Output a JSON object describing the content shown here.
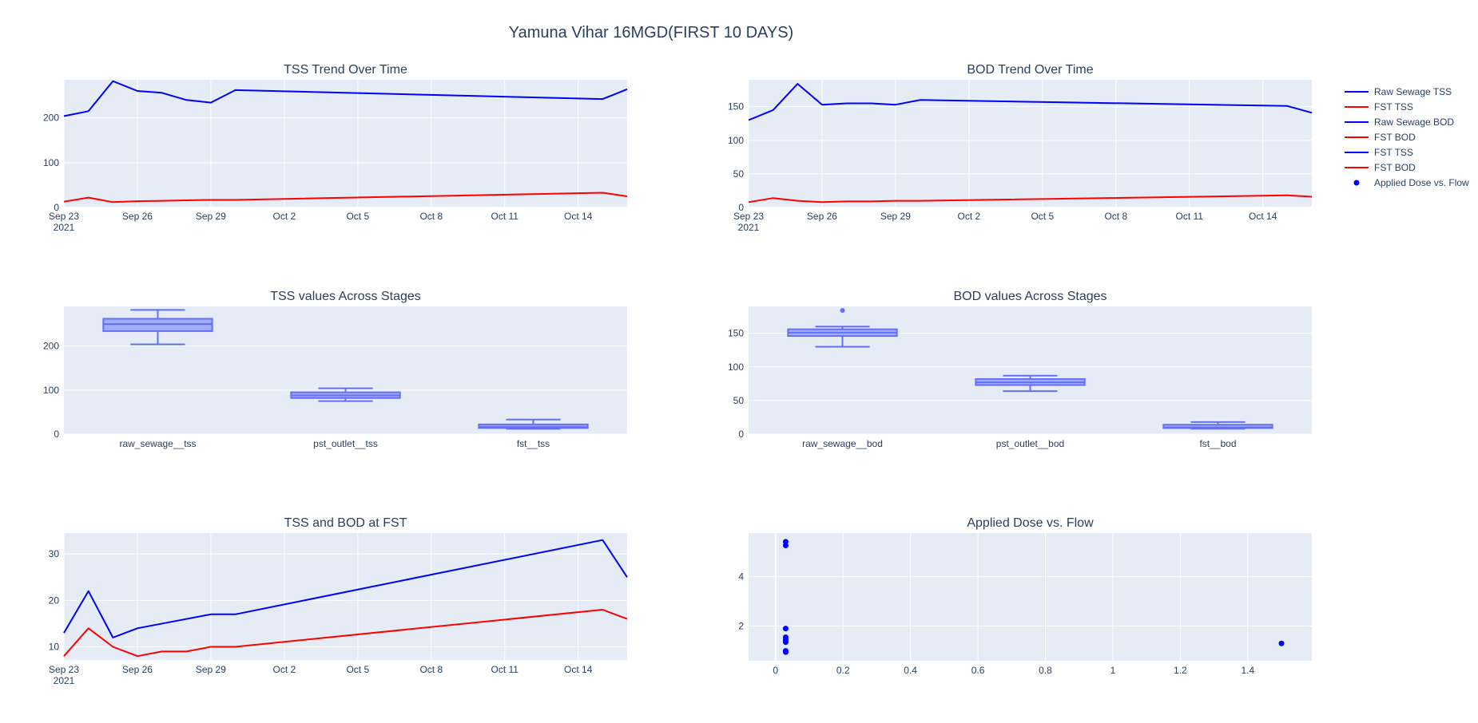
{
  "figure": {
    "title": "Yamuna Vihar 16MGD(FIRST 10 DAYS)",
    "colors": {
      "blue": "#0000ff",
      "red": "#ff0000",
      "box": "#636efa",
      "plot_bg": "#e5ecf6",
      "text": "#2a3f5f",
      "grid": "#ffffff"
    }
  },
  "legend": {
    "placement": "right",
    "items": [
      {
        "label": "Raw Sewage TSS",
        "color": "#0000ff",
        "kind": "line"
      },
      {
        "label": "FST TSS",
        "color": "#ff0000",
        "kind": "line"
      },
      {
        "label": "Raw Sewage BOD",
        "color": "#0000ff",
        "kind": "line"
      },
      {
        "label": "FST BOD",
        "color": "#ff0000",
        "kind": "line"
      },
      {
        "label": "FST TSS",
        "color": "#0000ff",
        "kind": "line"
      },
      {
        "label": "FST BOD",
        "color": "#ff0000",
        "kind": "line"
      },
      {
        "label": "Applied Dose vs. Flow",
        "color": "#0000ff",
        "kind": "marker"
      }
    ]
  },
  "chart_data": [
    {
      "type": "line",
      "title": "TSS Trend Over Time",
      "x_date_range": [
        "2021-09-23",
        "2021-10-16"
      ],
      "ylim": [
        0,
        285
      ],
      "yticks": [
        0,
        100,
        200
      ],
      "xtick_dates": [
        "2021-09-23",
        "2021-09-26",
        "2021-09-29",
        "2021-10-02",
        "2021-10-05",
        "2021-10-08",
        "2021-10-11",
        "2021-10-14"
      ],
      "xtick_labels": [
        "Sep 23",
        "Sep 26",
        "Sep 29",
        "Oct 2",
        "Oct 5",
        "Oct 8",
        "Oct 11",
        "Oct 14"
      ],
      "x_year_label": "2021",
      "grid": true,
      "series": [
        {
          "name": "Raw Sewage TSS",
          "color": "#0000ff",
          "x": [
            "2021-09-23",
            "2021-09-24",
            "2021-09-25",
            "2021-09-26",
            "2021-09-27",
            "2021-09-28",
            "2021-09-29",
            "2021-09-30",
            "2021-10-15",
            "2021-10-16"
          ],
          "y": [
            204,
            215,
            282,
            260,
            256,
            240,
            234,
            262,
            242,
            264
          ]
        },
        {
          "name": "FST TSS",
          "color": "#ff0000",
          "x": [
            "2021-09-23",
            "2021-09-24",
            "2021-09-25",
            "2021-09-26",
            "2021-09-27",
            "2021-09-28",
            "2021-09-29",
            "2021-09-30",
            "2021-10-15",
            "2021-10-16"
          ],
          "y": [
            13,
            22,
            12,
            14,
            15,
            16,
            17,
            17,
            33,
            25
          ]
        }
      ]
    },
    {
      "type": "line",
      "title": "BOD Trend Over Time",
      "x_date_range": [
        "2021-09-23",
        "2021-10-16"
      ],
      "ylim": [
        0,
        190
      ],
      "yticks": [
        0,
        50,
        100,
        150
      ],
      "xtick_dates": [
        "2021-09-23",
        "2021-09-26",
        "2021-09-29",
        "2021-10-02",
        "2021-10-05",
        "2021-10-08",
        "2021-10-11",
        "2021-10-14"
      ],
      "xtick_labels": [
        "Sep 23",
        "Sep 26",
        "Sep 29",
        "Oct 2",
        "Oct 5",
        "Oct 8",
        "Oct 11",
        "Oct 14"
      ],
      "x_year_label": "2021",
      "grid": true,
      "series": [
        {
          "name": "Raw Sewage BOD",
          "color": "#0000ff",
          "x": [
            "2021-09-23",
            "2021-09-24",
            "2021-09-25",
            "2021-09-26",
            "2021-09-27",
            "2021-09-28",
            "2021-09-29",
            "2021-09-30",
            "2021-10-15",
            "2021-10-16"
          ],
          "y": [
            130,
            145,
            184,
            153,
            155,
            155,
            153,
            160,
            151,
            141
          ]
        },
        {
          "name": "FST BOD",
          "color": "#ff0000",
          "x": [
            "2021-09-23",
            "2021-09-24",
            "2021-09-25",
            "2021-09-26",
            "2021-09-27",
            "2021-09-28",
            "2021-09-29",
            "2021-09-30",
            "2021-10-15",
            "2021-10-16"
          ],
          "y": [
            8,
            14,
            10,
            8,
            9,
            9,
            10,
            10,
            18,
            16
          ]
        }
      ]
    },
    {
      "type": "box",
      "title": "TSS values Across Stages",
      "ylim": [
        0,
        290
      ],
      "yticks": [
        0,
        100,
        200
      ],
      "grid": true,
      "boxes": [
        {
          "name": "raw_sewage__tss",
          "min": 204,
          "q1": 234,
          "median": 250,
          "q3": 262,
          "max": 282,
          "outliers": []
        },
        {
          "name": "pst_outlet__tss",
          "min": 75,
          "q1": 82,
          "median": 88,
          "q3": 95,
          "max": 104,
          "outliers": []
        },
        {
          "name": "fst__tss",
          "min": 12,
          "q1": 14,
          "median": 16,
          "q3": 22,
          "max": 33,
          "outliers": []
        }
      ]
    },
    {
      "type": "box",
      "title": "BOD values Across Stages",
      "ylim": [
        0,
        190
      ],
      "yticks": [
        0,
        50,
        100,
        150
      ],
      "grid": true,
      "boxes": [
        {
          "name": "raw_sewage__bod",
          "min": 130,
          "q1": 146,
          "median": 151,
          "q3": 156,
          "max": 160,
          "outliers": [
            184
          ]
        },
        {
          "name": "pst_outlet__bod",
          "min": 64,
          "q1": 73,
          "median": 77,
          "q3": 82,
          "max": 87,
          "outliers": []
        },
        {
          "name": "fst__bod",
          "min": 8,
          "q1": 9,
          "median": 10,
          "q3": 14,
          "max": 18,
          "outliers": []
        }
      ]
    },
    {
      "type": "line",
      "title": "TSS and BOD at FST",
      "x_date_range": [
        "2021-09-23",
        "2021-10-16"
      ],
      "ylim": [
        7,
        34.5
      ],
      "yticks": [
        10,
        20,
        30
      ],
      "xtick_dates": [
        "2021-09-23",
        "2021-09-26",
        "2021-09-29",
        "2021-10-02",
        "2021-10-05",
        "2021-10-08",
        "2021-10-11",
        "2021-10-14"
      ],
      "xtick_labels": [
        "Sep 23",
        "Sep 26",
        "Sep 29",
        "Oct 2",
        "Oct 5",
        "Oct 8",
        "Oct 11",
        "Oct 14"
      ],
      "x_year_label": "2021",
      "grid": true,
      "series": [
        {
          "name": "FST TSS",
          "color": "#0000ff",
          "x": [
            "2021-09-23",
            "2021-09-24",
            "2021-09-25",
            "2021-09-26",
            "2021-09-29",
            "2021-09-30",
            "2021-10-15",
            "2021-10-16"
          ],
          "y": [
            13,
            22,
            12,
            14,
            17,
            17,
            33,
            25
          ]
        },
        {
          "name": "FST BOD",
          "color": "#ff0000",
          "x": [
            "2021-09-23",
            "2021-09-24",
            "2021-09-25",
            "2021-09-26",
            "2021-09-27",
            "2021-09-28",
            "2021-09-29",
            "2021-09-30",
            "2021-10-15",
            "2021-10-16"
          ],
          "y": [
            8,
            14,
            10,
            8,
            9,
            9,
            10,
            10,
            18,
            16
          ]
        }
      ]
    },
    {
      "type": "scatter",
      "title": "Applied Dose vs. Flow",
      "xlim": [
        -0.08,
        1.59
      ],
      "ylim": [
        0.6,
        5.75
      ],
      "xticks": [
        0,
        0.2,
        0.4,
        0.6,
        0.8,
        1,
        1.2,
        1.4
      ],
      "xtick_labels": [
        "0",
        "0.2",
        "0.4",
        "0.6",
        "0.8",
        "1",
        "1.2",
        "1.4"
      ],
      "yticks": [
        2,
        4
      ],
      "grid": true,
      "series": [
        {
          "name": "Applied Dose vs. Flow",
          "color": "#0000ff",
          "points": [
            [
              0.03,
              5.4
            ],
            [
              0.03,
              5.25
            ],
            [
              0.03,
              1.9
            ],
            [
              0.03,
              1.55
            ],
            [
              0.03,
              1.45
            ],
            [
              0.03,
              1.35
            ],
            [
              0.03,
              1.0
            ],
            [
              0.03,
              0.95
            ],
            [
              1.5,
              1.3
            ]
          ]
        }
      ]
    }
  ]
}
